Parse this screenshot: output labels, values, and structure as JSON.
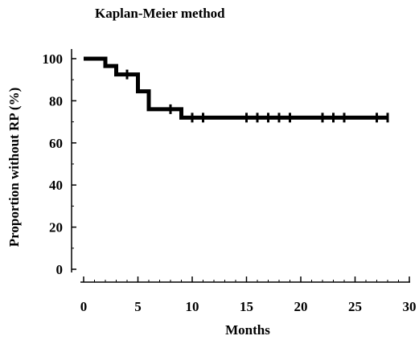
{
  "chart_data": {
    "type": "line",
    "title": "Kaplan-Meier method",
    "xlabel": "Months",
    "ylabel": "Proportion without RP (%)",
    "xlim": [
      0,
      30
    ],
    "ylim": [
      0,
      100
    ],
    "x_ticks": [
      0,
      5,
      10,
      15,
      20,
      25,
      30
    ],
    "x_tick_labels": [
      "0",
      "5",
      "10",
      "15",
      "20",
      "25",
      "30"
    ],
    "y_ticks": [
      0,
      20,
      40,
      60,
      80,
      100
    ],
    "y_tick_labels": [
      "0",
      "20",
      "40",
      "60",
      "80",
      "100"
    ],
    "grid": false,
    "legend": "none",
    "series": [
      {
        "steps": [
          {
            "x": 0,
            "y": 100
          },
          {
            "x": 2,
            "y": 96.5
          },
          {
            "x": 3,
            "y": 92.5
          },
          {
            "x": 5,
            "y": 84.5
          },
          {
            "x": 6,
            "y": 76
          },
          {
            "x": 9,
            "y": 72
          }
        ],
        "end_x": 28,
        "censored": [
          {
            "x": 4,
            "y": 92.5
          },
          {
            "x": 8,
            "y": 76
          },
          {
            "x": 10,
            "y": 72
          },
          {
            "x": 11,
            "y": 72
          },
          {
            "x": 15,
            "y": 72
          },
          {
            "x": 16,
            "y": 72
          },
          {
            "x": 17,
            "y": 72
          },
          {
            "x": 18,
            "y": 72
          },
          {
            "x": 19,
            "y": 72
          },
          {
            "x": 22,
            "y": 72
          },
          {
            "x": 23,
            "y": 72
          },
          {
            "x": 24,
            "y": 72
          },
          {
            "x": 27,
            "y": 72
          },
          {
            "x": 28,
            "y": 72
          }
        ],
        "color": "#000000"
      }
    ]
  }
}
